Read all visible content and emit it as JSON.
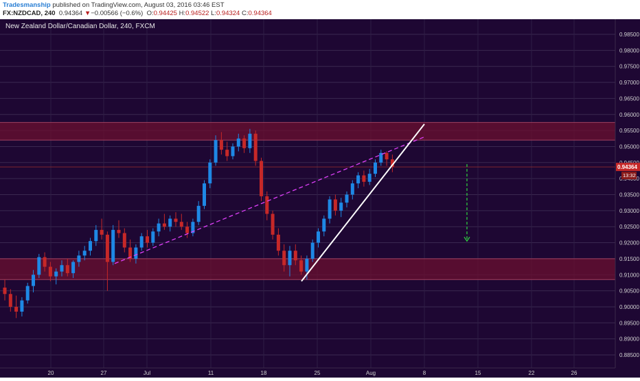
{
  "header": {
    "author": "Tradesmanship",
    "published": "published on TradingView.com, August 03, 2016 03:46 EST",
    "symbol": "FX:NZDCAD, 240",
    "last": "0.94364",
    "change_arrow": "▼",
    "change": "−0.00566 (−0.6%)",
    "o_label": "O:",
    "o_value": "0.94425",
    "h_label": "H:",
    "h_value": "0.94522",
    "l_label": "L:",
    "l_value": "0.94324",
    "c_label": "C:",
    "c_value": "0.94364"
  },
  "chart_data": {
    "type": "candlestick",
    "title": "New Zealand Dollar/Canadian Dollar, 240, FXCM",
    "y_axis": {
      "ticks": [
        "0.98500",
        "0.98000",
        "0.97500",
        "0.97000",
        "0.96500",
        "0.96000",
        "0.95500",
        "0.95000",
        "0.94500",
        "0.94000",
        "0.93500",
        "0.93000",
        "0.92500",
        "0.92000",
        "0.91500",
        "0.91000",
        "0.90500",
        "0.90000",
        "0.89500",
        "0.89000",
        "0.88500"
      ],
      "range": [
        0.8825,
        0.9875
      ]
    },
    "x_axis": {
      "ticks": [
        "20",
        "27",
        "Jul",
        "11",
        "18",
        "25",
        "Aug",
        "8",
        "15",
        "22",
        "26"
      ]
    },
    "price_label": "0.94364",
    "countdown_label": "13:32",
    "zones": [
      {
        "from": 0.952,
        "to": 0.9575,
        "meaning": "resistance"
      },
      {
        "from": 0.9085,
        "to": 0.915,
        "meaning": "support"
      }
    ],
    "trendlines": [
      {
        "style": "dashed",
        "color": "#e040fb",
        "from": {
          "x": "Jun 28",
          "y": 0.9135
        },
        "to": {
          "x": "Aug 7",
          "y": 0.953
        }
      },
      {
        "style": "solid",
        "color": "#ffffff",
        "from": {
          "x": "Jul 22",
          "y": 0.908
        },
        "to": {
          "x": "Aug 7",
          "y": 0.957
        }
      }
    ],
    "projection_arrow": {
      "color": "#2ecc40",
      "x": "Aug 12",
      "from": 0.9445,
      "to": 0.9205
    },
    "ohlc": [
      {
        "o": 0.906,
        "h": 0.9085,
        "l": 0.902,
        "c": 0.904
      },
      {
        "o": 0.904,
        "h": 0.9055,
        "l": 0.8985,
        "c": 0.9
      },
      {
        "o": 0.9,
        "h": 0.9035,
        "l": 0.8965,
        "c": 0.8985
      },
      {
        "o": 0.8985,
        "h": 0.903,
        "l": 0.897,
        "c": 0.902
      },
      {
        "o": 0.902,
        "h": 0.9075,
        "l": 0.901,
        "c": 0.9065
      },
      {
        "o": 0.9065,
        "h": 0.9115,
        "l": 0.9045,
        "c": 0.91
      },
      {
        "o": 0.91,
        "h": 0.9165,
        "l": 0.909,
        "c": 0.9155
      },
      {
        "o": 0.9155,
        "h": 0.917,
        "l": 0.911,
        "c": 0.9125
      },
      {
        "o": 0.9125,
        "h": 0.914,
        "l": 0.908,
        "c": 0.9095
      },
      {
        "o": 0.9095,
        "h": 0.912,
        "l": 0.907,
        "c": 0.911
      },
      {
        "o": 0.911,
        "h": 0.9145,
        "l": 0.9095,
        "c": 0.913
      },
      {
        "o": 0.913,
        "h": 0.915,
        "l": 0.9095,
        "c": 0.9105
      },
      {
        "o": 0.9105,
        "h": 0.9145,
        "l": 0.909,
        "c": 0.914
      },
      {
        "o": 0.914,
        "h": 0.9175,
        "l": 0.9125,
        "c": 0.916
      },
      {
        "o": 0.916,
        "h": 0.919,
        "l": 0.9145,
        "c": 0.9175
      },
      {
        "o": 0.9175,
        "h": 0.9215,
        "l": 0.916,
        "c": 0.9205
      },
      {
        "o": 0.9205,
        "h": 0.9255,
        "l": 0.919,
        "c": 0.924
      },
      {
        "o": 0.924,
        "h": 0.9275,
        "l": 0.921,
        "c": 0.9225
      },
      {
        "o": 0.9225,
        "h": 0.9235,
        "l": 0.905,
        "c": 0.914
      },
      {
        "o": 0.914,
        "h": 0.9255,
        "l": 0.913,
        "c": 0.924
      },
      {
        "o": 0.924,
        "h": 0.927,
        "l": 0.9215,
        "c": 0.923
      },
      {
        "o": 0.923,
        "h": 0.9245,
        "l": 0.917,
        "c": 0.9185
      },
      {
        "o": 0.9185,
        "h": 0.921,
        "l": 0.914,
        "c": 0.915
      },
      {
        "o": 0.915,
        "h": 0.9195,
        "l": 0.9135,
        "c": 0.9185
      },
      {
        "o": 0.9185,
        "h": 0.923,
        "l": 0.9175,
        "c": 0.922
      },
      {
        "o": 0.922,
        "h": 0.924,
        "l": 0.9185,
        "c": 0.92
      },
      {
        "o": 0.92,
        "h": 0.9245,
        "l": 0.919,
        "c": 0.9235
      },
      {
        "o": 0.9235,
        "h": 0.9275,
        "l": 0.922,
        "c": 0.926
      },
      {
        "o": 0.926,
        "h": 0.929,
        "l": 0.924,
        "c": 0.925
      },
      {
        "o": 0.925,
        "h": 0.9285,
        "l": 0.9235,
        "c": 0.9275
      },
      {
        "o": 0.9275,
        "h": 0.9295,
        "l": 0.925,
        "c": 0.9265
      },
      {
        "o": 0.9265,
        "h": 0.929,
        "l": 0.924,
        "c": 0.925
      },
      {
        "o": 0.925,
        "h": 0.9265,
        "l": 0.9215,
        "c": 0.923
      },
      {
        "o": 0.923,
        "h": 0.9275,
        "l": 0.922,
        "c": 0.9265
      },
      {
        "o": 0.9265,
        "h": 0.933,
        "l": 0.9255,
        "c": 0.9315
      },
      {
        "o": 0.9315,
        "h": 0.9395,
        "l": 0.9305,
        "c": 0.9385
      },
      {
        "o": 0.9385,
        "h": 0.946,
        "l": 0.937,
        "c": 0.945
      },
      {
        "o": 0.945,
        "h": 0.9535,
        "l": 0.944,
        "c": 0.952
      },
      {
        "o": 0.952,
        "h": 0.9545,
        "l": 0.9475,
        "c": 0.949
      },
      {
        "o": 0.949,
        "h": 0.9515,
        "l": 0.9455,
        "c": 0.947
      },
      {
        "o": 0.947,
        "h": 0.951,
        "l": 0.946,
        "c": 0.95
      },
      {
        "o": 0.95,
        "h": 0.954,
        "l": 0.9485,
        "c": 0.9525
      },
      {
        "o": 0.9525,
        "h": 0.9535,
        "l": 0.948,
        "c": 0.9495
      },
      {
        "o": 0.9495,
        "h": 0.9555,
        "l": 0.948,
        "c": 0.954
      },
      {
        "o": 0.954,
        "h": 0.955,
        "l": 0.944,
        "c": 0.9455
      },
      {
        "o": 0.9455,
        "h": 0.9465,
        "l": 0.933,
        "c": 0.9345
      },
      {
        "o": 0.9345,
        "h": 0.936,
        "l": 0.927,
        "c": 0.929
      },
      {
        "o": 0.929,
        "h": 0.93,
        "l": 0.921,
        "c": 0.9225
      },
      {
        "o": 0.9225,
        "h": 0.9245,
        "l": 0.916,
        "c": 0.9175
      },
      {
        "o": 0.9175,
        "h": 0.9195,
        "l": 0.911,
        "c": 0.913
      },
      {
        "o": 0.913,
        "h": 0.919,
        "l": 0.9095,
        "c": 0.9175
      },
      {
        "o": 0.9175,
        "h": 0.9195,
        "l": 0.913,
        "c": 0.9145
      },
      {
        "o": 0.9145,
        "h": 0.916,
        "l": 0.91,
        "c": 0.911
      },
      {
        "o": 0.911,
        "h": 0.916,
        "l": 0.9085,
        "c": 0.915
      },
      {
        "o": 0.915,
        "h": 0.921,
        "l": 0.914,
        "c": 0.92
      },
      {
        "o": 0.92,
        "h": 0.9245,
        "l": 0.9185,
        "c": 0.9235
      },
      {
        "o": 0.9235,
        "h": 0.9285,
        "l": 0.922,
        "c": 0.9275
      },
      {
        "o": 0.9275,
        "h": 0.9345,
        "l": 0.926,
        "c": 0.9335
      },
      {
        "o": 0.9335,
        "h": 0.935,
        "l": 0.9285,
        "c": 0.93
      },
      {
        "o": 0.93,
        "h": 0.934,
        "l": 0.928,
        "c": 0.9325
      },
      {
        "o": 0.9325,
        "h": 0.936,
        "l": 0.931,
        "c": 0.935
      },
      {
        "o": 0.935,
        "h": 0.9395,
        "l": 0.9335,
        "c": 0.9385
      },
      {
        "o": 0.9385,
        "h": 0.942,
        "l": 0.937,
        "c": 0.941
      },
      {
        "o": 0.941,
        "h": 0.9425,
        "l": 0.9375,
        "c": 0.939
      },
      {
        "o": 0.939,
        "h": 0.943,
        "l": 0.938,
        "c": 0.9415
      },
      {
        "o": 0.9415,
        "h": 0.946,
        "l": 0.9405,
        "c": 0.945
      },
      {
        "o": 0.945,
        "h": 0.949,
        "l": 0.944,
        "c": 0.948
      },
      {
        "o": 0.948,
        "h": 0.9485,
        "l": 0.944,
        "c": 0.946
      },
      {
        "o": 0.946,
        "h": 0.9475,
        "l": 0.942,
        "c": 0.9436
      }
    ]
  }
}
